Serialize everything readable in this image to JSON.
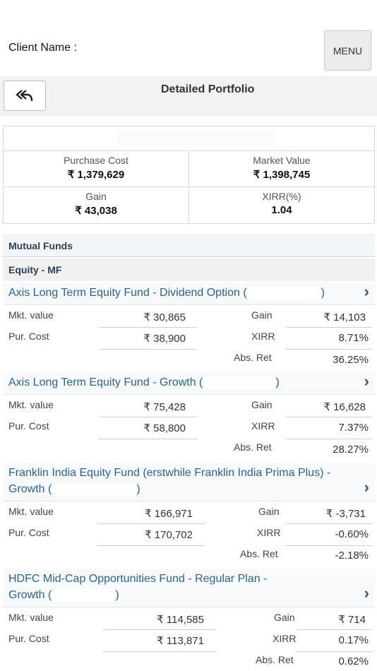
{
  "header": {
    "client_label": "Client Name :",
    "menu_label": "MENU"
  },
  "subheader": {
    "back_icon": "double-reply-arrow-icon",
    "title": "Detailed Portfolio"
  },
  "summary": {
    "purchase_cost_label": "Purchase Cost",
    "purchase_cost_value": "₹ 1,379,629",
    "market_value_label": "Market Value",
    "market_value_value": "₹ 1,398,745",
    "gain_label": "Gain",
    "gain_value": "₹ 43,038",
    "xirr_label": "XIRR(%)",
    "xirr_value": "1.04"
  },
  "section": {
    "title": "Mutual Funds",
    "category": "Equity - MF"
  },
  "labels": {
    "mkt_value": "Mkt. value",
    "pur_cost": "Pur. Cost",
    "gain": "Gain",
    "xirr": "XIRR",
    "abs_ret": "Abs. Ret",
    "chevron": "›"
  },
  "funds": [
    {
      "name": "Axis Long Term Equity Fund - Dividend Option (",
      "name_close": ")",
      "mkt_value": "₹ 30,865",
      "pur_cost": "₹ 38,900",
      "gain": "₹ 14,103",
      "xirr": "8.71%",
      "abs_ret": "36.25%"
    },
    {
      "name": "Axis Long Term Equity Fund - Growth (",
      "name_close": ")",
      "mkt_value": "₹ 75,428",
      "pur_cost": "₹ 58,800",
      "gain": "₹ 16,628",
      "xirr": "7.37%",
      "abs_ret": "28.27%"
    },
    {
      "name_line1": "Franklin India Equity Fund (erstwhile Franklin India Prima Plus) -",
      "name_line2": "Growth (",
      "name_close": ")",
      "mkt_value": "₹ 166,971",
      "pur_cost": "₹ 170,702",
      "gain": "₹ -3,731",
      "xirr": "-0.60%",
      "abs_ret": "-2.18%"
    },
    {
      "name_line1": "HDFC Mid-Cap Opportunities Fund - Regular Plan -",
      "name_line2": "Growth (",
      "name_close": ")",
      "mkt_value": "₹ 114,585",
      "pur_cost": "₹ 113,871",
      "gain": "₹ 714",
      "xirr": "0.17%",
      "abs_ret": "0.62%"
    }
  ]
}
